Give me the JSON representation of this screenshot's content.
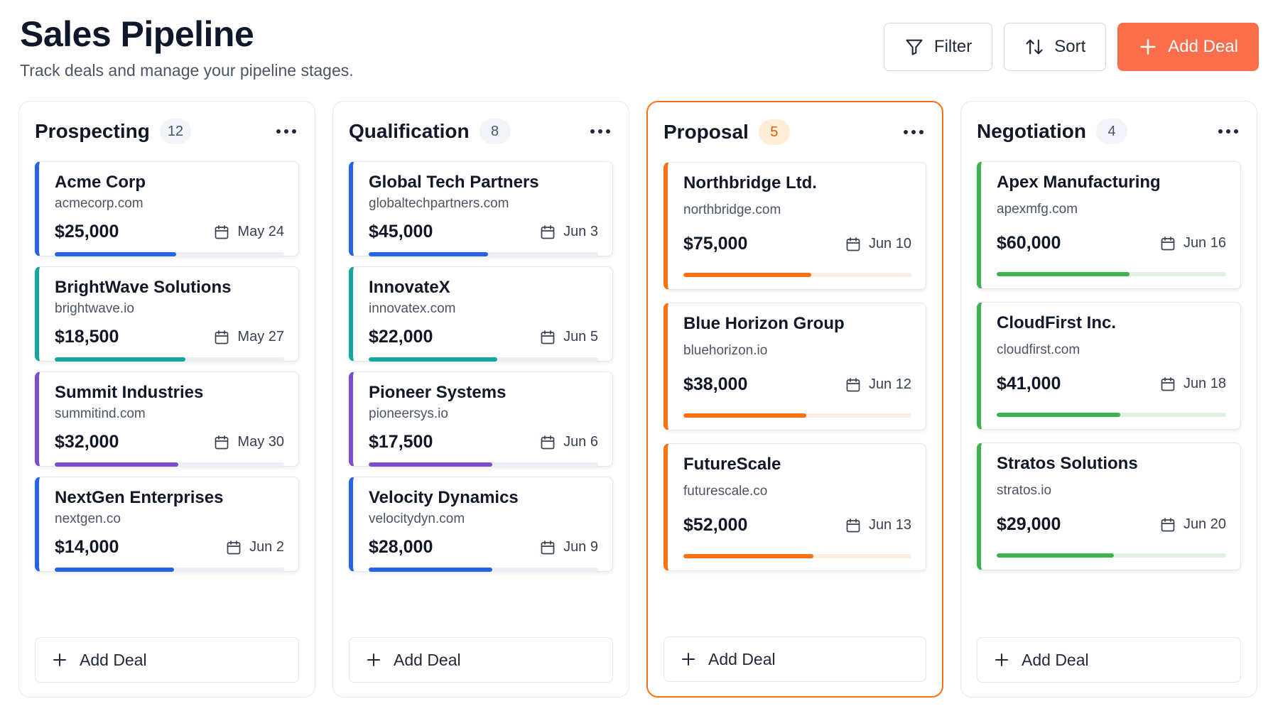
{
  "header": {
    "title": "Sales Pipeline",
    "subtitle": "Track deals and manage your pipeline stages."
  },
  "toolbar": {
    "filter_label": "Filter",
    "sort_label": "Sort",
    "add_deal_label": "Add Deal"
  },
  "colors": {
    "primary": "#fb6e4c",
    "active_border": "#f97316",
    "blue": "#2563eb",
    "teal": "#14a6a0",
    "purple": "#7c4dce",
    "orange": "#f97316",
    "green": "#3fb150"
  },
  "columns": [
    {
      "title": "Prospecting",
      "count": "12",
      "add_label": "Add Deal",
      "cards": [
        {
          "name": "Acme Corp",
          "domain": "acmecorp.com",
          "amount": "$25,000",
          "date": "May 24",
          "progress": 0.53,
          "accent": "blue"
        },
        {
          "name": "BrightWave Solutions",
          "domain": "brightwave.io",
          "amount": "$18,500",
          "date": "May 27",
          "progress": 0.57,
          "accent": "teal"
        },
        {
          "name": "Summit Industries",
          "domain": "summitind.com",
          "amount": "$32,000",
          "date": "May 30",
          "progress": 0.54,
          "accent": "purple"
        },
        {
          "name": "NextGen Enterprises",
          "domain": "nextgen.co",
          "amount": "$14,000",
          "date": "Jun 2",
          "progress": 0.52,
          "accent": "blue"
        }
      ]
    },
    {
      "title": "Qualification",
      "count": "8",
      "add_label": "Add Deal",
      "cards": [
        {
          "name": "Global Tech Partners",
          "domain": "globaltechpartners.com",
          "amount": "$45,000",
          "date": "Jun 3",
          "progress": 0.52,
          "accent": "blue"
        },
        {
          "name": "InnovateX",
          "domain": "innovatex.com",
          "amount": "$22,000",
          "date": "Jun 5",
          "progress": 0.56,
          "accent": "teal"
        },
        {
          "name": "Pioneer Systems",
          "domain": "pioneersys.io",
          "amount": "$17,500",
          "date": "Jun 6",
          "progress": 0.54,
          "accent": "purple"
        },
        {
          "name": "Velocity Dynamics",
          "domain": "velocitydyn.com",
          "amount": "$28,000",
          "date": "Jun 9",
          "progress": 0.54,
          "accent": "blue"
        }
      ]
    },
    {
      "title": "Proposal",
      "count": "5",
      "active": true,
      "add_label": "Add Deal",
      "cards": [
        {
          "name": "Northbridge Ltd.",
          "domain": "northbridge.com",
          "amount": "$75,000",
          "date": "Jun 10",
          "progress": 0.56,
          "accent": "orange"
        },
        {
          "name": "Blue Horizon Group",
          "domain": "bluehorizon.io",
          "amount": "$38,000",
          "date": "Jun 12",
          "progress": 0.54,
          "accent": "orange"
        },
        {
          "name": "FutureScale",
          "domain": "futurescale.co",
          "amount": "$52,000",
          "date": "Jun 13",
          "progress": 0.57,
          "accent": "orange"
        }
      ]
    },
    {
      "title": "Negotiation",
      "count": "4",
      "add_label": "Add Deal",
      "cards": [
        {
          "name": "Apex Manufacturing",
          "domain": "apexmfg.com",
          "amount": "$60,000",
          "date": "Jun 16",
          "progress": 0.58,
          "accent": "green"
        },
        {
          "name": "CloudFirst Inc.",
          "domain": "cloudfirst.com",
          "amount": "$41,000",
          "date": "Jun 18",
          "progress": 0.54,
          "accent": "green"
        },
        {
          "name": "Stratos Solutions",
          "domain": "stratos.io",
          "amount": "$29,000",
          "date": "Jun 20",
          "progress": 0.51,
          "accent": "green"
        }
      ]
    }
  ]
}
